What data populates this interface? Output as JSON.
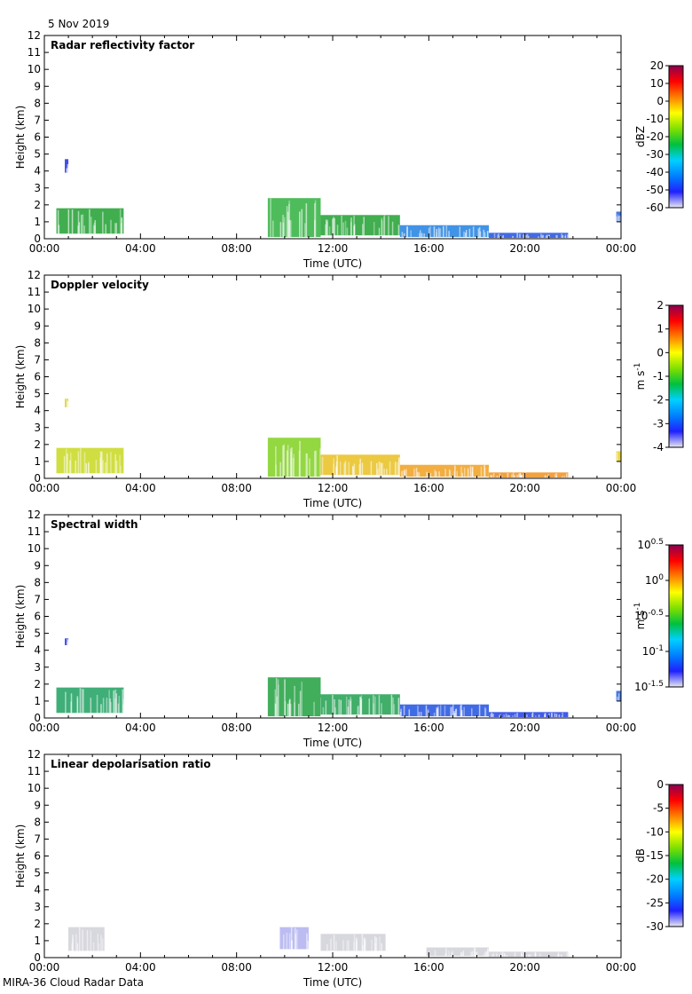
{
  "header": {
    "date": "5 Nov 2019"
  },
  "footer": {
    "instrument": "MIRA-36 Cloud Radar Data"
  },
  "chart_data": [
    {
      "type": "heatmap",
      "title": "Radar reflectivity factor",
      "xlabel": "Time (UTC)",
      "ylabel": "Height (km)",
      "xticks": [
        "00:00",
        "04:00",
        "08:00",
        "12:00",
        "16:00",
        "20:00",
        "00:00"
      ],
      "ylim": [
        0,
        12
      ],
      "xlim_hours": [
        0,
        24
      ],
      "colorbar": {
        "label": "dBZ",
        "ticks": [
          "20",
          "10",
          "0",
          "-10",
          "-20",
          "-30",
          "-40",
          "-50",
          "-60"
        ],
        "range": [
          -60,
          20
        ],
        "colors": [
          "#e8e8f0",
          "#2020ff",
          "#0080ff",
          "#00d0ff",
          "#00c040",
          "#80e000",
          "#ffff00",
          "#ff8000",
          "#ff0000",
          "#8b0050"
        ]
      },
      "layers": [
        {
          "start": 0.5,
          "end": 3.3,
          "base": 0.3,
          "top": 1.8,
          "color": "#1fa030"
        },
        {
          "start": 0.85,
          "end": 1.0,
          "base": 3.9,
          "top": 4.7,
          "color": "#2030e0"
        },
        {
          "start": 9.3,
          "end": 11.5,
          "base": 0.1,
          "top": 2.4,
          "color": "#30b040"
        },
        {
          "start": 11.5,
          "end": 14.8,
          "base": 0.2,
          "top": 1.4,
          "color": "#20a030"
        },
        {
          "start": 14.8,
          "end": 18.5,
          "base": 0.1,
          "top": 0.8,
          "color": "#2080e0"
        },
        {
          "start": 18.5,
          "end": 21.8,
          "base": 0.05,
          "top": 0.35,
          "color": "#2050e0"
        },
        {
          "start": 23.8,
          "end": 24,
          "base": 1.0,
          "top": 1.6,
          "color": "#2060e0"
        }
      ]
    },
    {
      "type": "heatmap",
      "title": "Doppler velocity",
      "xlabel": "Time (UTC)",
      "ylabel": "Height (km)",
      "xticks": [
        "00:00",
        "04:00",
        "08:00",
        "12:00",
        "16:00",
        "20:00",
        "00:00"
      ],
      "ylim": [
        0,
        12
      ],
      "xlim_hours": [
        0,
        24
      ],
      "colorbar": {
        "label": "m s-1",
        "ticks": [
          "2",
          "1",
          "0",
          "-1",
          "-2",
          "-3",
          "-4"
        ],
        "range": [
          -4,
          2
        ],
        "colors": [
          "#e8e8f0",
          "#2020ff",
          "#0080ff",
          "#00d0ff",
          "#00c040",
          "#80e000",
          "#ffff00",
          "#ff8000",
          "#ff0000",
          "#8b0050"
        ]
      },
      "layers": [
        {
          "start": 0.5,
          "end": 3.3,
          "base": 0.3,
          "top": 1.8,
          "color": "#c8d820"
        },
        {
          "start": 0.85,
          "end": 1.0,
          "base": 4.2,
          "top": 4.7,
          "color": "#d8d020"
        },
        {
          "start": 9.3,
          "end": 11.5,
          "base": 0.1,
          "top": 2.4,
          "color": "#80d020"
        },
        {
          "start": 11.5,
          "end": 14.8,
          "base": 0.2,
          "top": 1.4,
          "color": "#e8c020"
        },
        {
          "start": 14.8,
          "end": 18.5,
          "base": 0.1,
          "top": 0.8,
          "color": "#f0a020"
        },
        {
          "start": 18.5,
          "end": 21.8,
          "base": 0.05,
          "top": 0.35,
          "color": "#f09020"
        },
        {
          "start": 23.8,
          "end": 24,
          "base": 1.0,
          "top": 1.6,
          "color": "#e8d020"
        }
      ]
    },
    {
      "type": "heatmap",
      "title": "Spectral width",
      "xlabel": "Time (UTC)",
      "ylabel": "Height (km)",
      "xticks": [
        "00:00",
        "04:00",
        "08:00",
        "12:00",
        "16:00",
        "20:00",
        "00:00"
      ],
      "ylim": [
        0,
        12
      ],
      "xlim_hours": [
        0,
        24
      ],
      "colorbar": {
        "label": "m s-1",
        "ticks": [
          "10^0.5",
          "10^0",
          "10^-0.5",
          "10^-1",
          "10^-1.5"
        ],
        "range": [
          -1.5,
          0.5
        ],
        "colors": [
          "#e8e8f0",
          "#2020ff",
          "#0080ff",
          "#00d0ff",
          "#00c040",
          "#80e000",
          "#ffff00",
          "#ff8000",
          "#ff0000",
          "#8b0050"
        ]
      },
      "layers": [
        {
          "start": 0.5,
          "end": 3.3,
          "base": 0.3,
          "top": 1.8,
          "color": "#1fa060"
        },
        {
          "start": 0.85,
          "end": 1.0,
          "base": 4.3,
          "top": 4.7,
          "color": "#2030e0"
        },
        {
          "start": 9.3,
          "end": 11.5,
          "base": 0.1,
          "top": 2.4,
          "color": "#20a040"
        },
        {
          "start": 11.5,
          "end": 14.8,
          "base": 0.2,
          "top": 1.4,
          "color": "#20a050"
        },
        {
          "start": 14.8,
          "end": 18.5,
          "base": 0.1,
          "top": 0.8,
          "color": "#2050e0"
        },
        {
          "start": 18.5,
          "end": 21.8,
          "base": 0.05,
          "top": 0.35,
          "color": "#2040e0"
        },
        {
          "start": 23.8,
          "end": 24,
          "base": 1.0,
          "top": 1.6,
          "color": "#2060e0"
        }
      ]
    },
    {
      "type": "heatmap",
      "title": "Linear depolarisation ratio",
      "xlabel": "Time (UTC)",
      "ylabel": "Height (km)",
      "xticks": [
        "00:00",
        "04:00",
        "08:00",
        "12:00",
        "16:00",
        "20:00",
        "00:00"
      ],
      "ylim": [
        0,
        12
      ],
      "xlim_hours": [
        0,
        24
      ],
      "colorbar": {
        "label": "dB",
        "ticks": [
          "0",
          "-5",
          "-10",
          "-15",
          "-20",
          "-25",
          "-30"
        ],
        "range": [
          -30,
          0
        ],
        "colors": [
          "#e8e8f0",
          "#2020ff",
          "#0080ff",
          "#00d0ff",
          "#00c040",
          "#80e000",
          "#ffff00",
          "#ff8000",
          "#ff0000",
          "#8b0050"
        ]
      },
      "layers": [
        {
          "start": 1.0,
          "end": 2.5,
          "base": 0.4,
          "top": 1.8,
          "color": "#d0d0d8"
        },
        {
          "start": 9.8,
          "end": 11.0,
          "base": 0.5,
          "top": 1.8,
          "color": "#b0b0f0"
        },
        {
          "start": 11.5,
          "end": 14.2,
          "base": 0.4,
          "top": 1.4,
          "color": "#d0d0d8"
        },
        {
          "start": 15.9,
          "end": 18.5,
          "base": 0.1,
          "top": 0.6,
          "color": "#d0d0d8"
        },
        {
          "start": 18.5,
          "end": 21.8,
          "base": 0.05,
          "top": 0.35,
          "color": "#d0d0d8"
        }
      ]
    }
  ]
}
